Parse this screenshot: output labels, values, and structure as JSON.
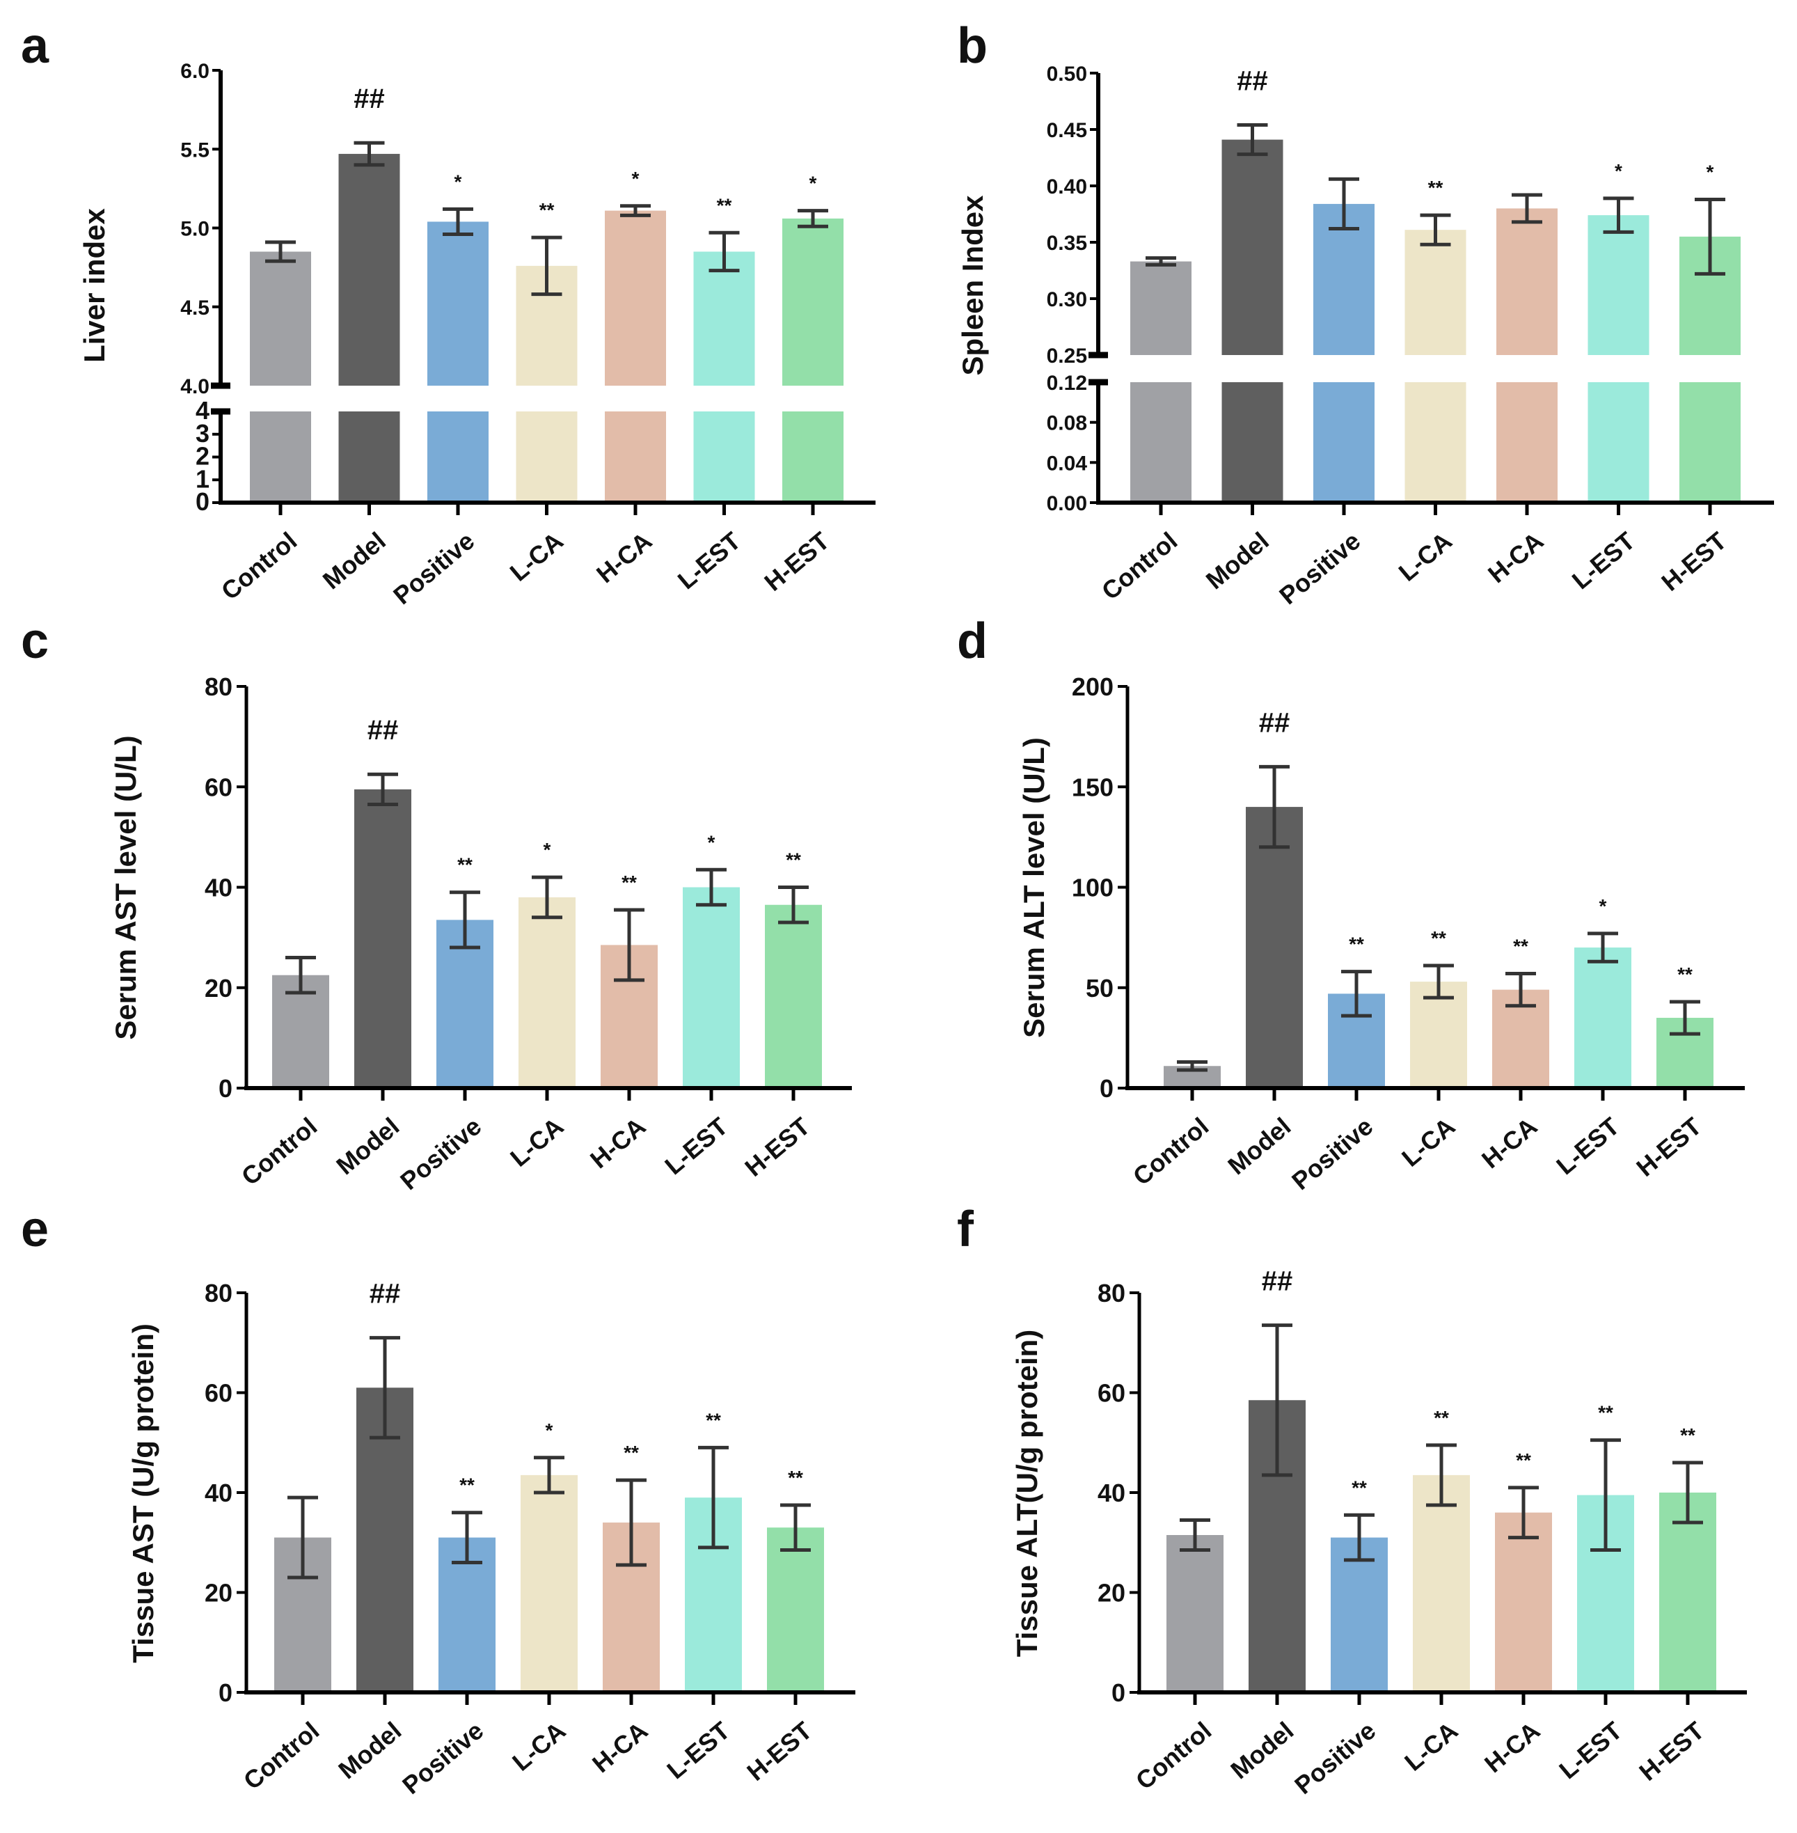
{
  "colors": [
    "#a0a1a5",
    "#5f5f5f",
    "#7aabd6",
    "#ede5c8",
    "#e2bca9",
    "#9beadb",
    "#93dfa9"
  ],
  "categories": [
    "Control",
    "Model",
    "Positive",
    "L-CA",
    "H-CA",
    "L-EST",
    "H-EST"
  ],
  "chart_data": [
    {
      "panel": "a",
      "type": "bar",
      "ylabel": "Liver index",
      "broken_axis": true,
      "lower_range": [
        0,
        4
      ],
      "lower_ticks": [
        "0",
        "1",
        "2",
        "3",
        "4"
      ],
      "upper_range": [
        4.0,
        6.0
      ],
      "upper_ticks": [
        "4.0",
        "4.5",
        "5.0",
        "5.5",
        "6.0"
      ],
      "values": [
        4.85,
        5.47,
        5.04,
        4.76,
        5.11,
        4.85,
        5.06
      ],
      "errors": [
        0.06,
        0.07,
        0.08,
        0.18,
        0.03,
        0.12,
        0.05
      ],
      "significance": [
        "",
        "##",
        "*",
        "**",
        "*",
        "**",
        "*"
      ]
    },
    {
      "panel": "b",
      "type": "bar",
      "ylabel": "Spleen Index",
      "broken_axis": true,
      "lower_range": [
        0,
        0.12
      ],
      "lower_ticks": [
        "0.00",
        "0.04",
        "0.08",
        "0.12"
      ],
      "upper_range": [
        0.25,
        0.5
      ],
      "upper_ticks": [
        "0.25",
        "0.30",
        "0.35",
        "0.40",
        "0.45",
        "0.50"
      ],
      "values": [
        0.333,
        0.441,
        0.384,
        0.361,
        0.38,
        0.374,
        0.355
      ],
      "errors": [
        0.003,
        0.013,
        0.022,
        0.013,
        0.012,
        0.015,
        0.033
      ],
      "significance": [
        "",
        "##",
        "",
        "**",
        "",
        "*",
        "*"
      ]
    },
    {
      "panel": "c",
      "type": "bar",
      "ylabel": "Serum AST level (U/L)",
      "ylim": [
        0,
        80
      ],
      "ticks": [
        "0",
        "20",
        "40",
        "60",
        "80"
      ],
      "values": [
        22.5,
        59.5,
        33.5,
        38,
        28.5,
        40,
        36.5
      ],
      "errors": [
        3.5,
        3,
        5.5,
        4,
        7,
        3.5,
        3.5
      ],
      "significance": [
        "",
        "##",
        "**",
        "*",
        "**",
        "*",
        "**"
      ]
    },
    {
      "panel": "d",
      "type": "bar",
      "ylabel": "Serum ALT level (U/L)",
      "ylim": [
        0,
        200
      ],
      "ticks": [
        "0",
        "50",
        "100",
        "150",
        "200"
      ],
      "values": [
        11,
        140,
        47,
        53,
        49,
        70,
        35
      ],
      "errors": [
        2,
        20,
        11,
        8,
        8,
        7,
        8
      ],
      "significance": [
        "",
        "##",
        "**",
        "**",
        "**",
        "*",
        "**"
      ]
    },
    {
      "panel": "e",
      "type": "bar",
      "ylabel": "Tissue AST (U/g protein)",
      "ylim": [
        0,
        80
      ],
      "ticks": [
        "0",
        "20",
        "40",
        "60",
        "80"
      ],
      "values": [
        31,
        61,
        31,
        43.5,
        34,
        39,
        33
      ],
      "errors": [
        8,
        10,
        5,
        3.5,
        8.5,
        10,
        4.5
      ],
      "significance": [
        "",
        "##",
        "**",
        "*",
        "**",
        "**",
        "**"
      ]
    },
    {
      "panel": "f",
      "type": "bar",
      "ylabel": "Tissue ALT(U/g protein)",
      "ylim": [
        0,
        80
      ],
      "ticks": [
        "0",
        "20",
        "40",
        "60",
        "80"
      ],
      "values": [
        31.5,
        58.5,
        31,
        43.5,
        36,
        39.5,
        40
      ],
      "errors": [
        3,
        15,
        4.5,
        6,
        5,
        11,
        6
      ],
      "significance": [
        "",
        "##",
        "**",
        "**",
        "**",
        "**",
        "**"
      ]
    }
  ]
}
